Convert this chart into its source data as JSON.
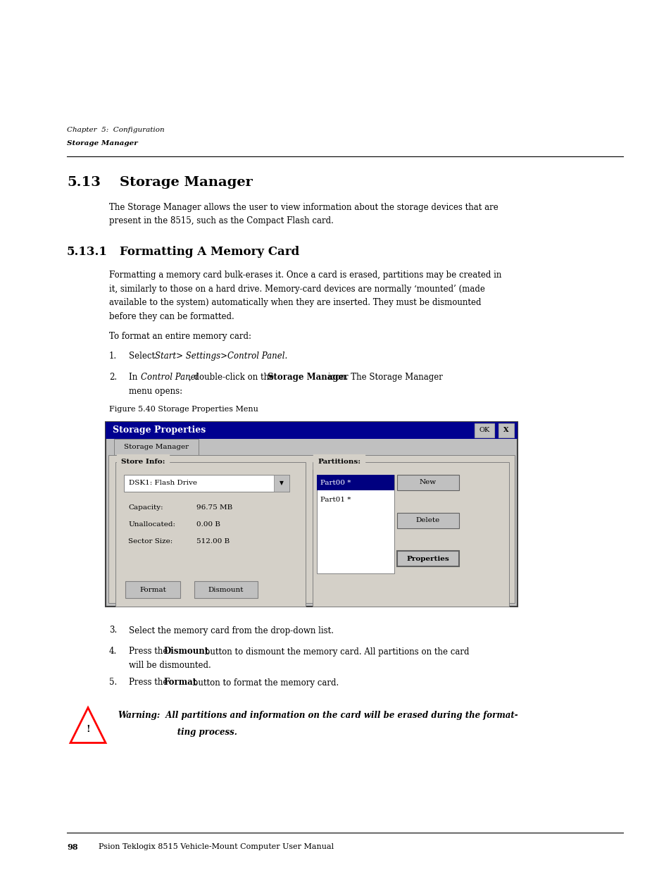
{
  "page_width": 9.54,
  "page_height": 12.35,
  "bg_color": "#ffffff",
  "top_margin_text_line1": "Chapter  5:  Configuration",
  "top_margin_text_line2": "Storage Manager",
  "section_number": "5.13",
  "section_title": "Storage Manager",
  "section_body_l1": "The Storage Manager allows the user to view information about the storage devices that are",
  "section_body_l2": "present in the 8515, such as the Compact Flash card.",
  "subsection_number": "5.13.1",
  "subsection_title": "Formatting A Memory Card",
  "sub_body_l1": "Formatting a memory card bulk-erases it. Once a card is erased, partitions may be created in",
  "sub_body_l2": "it, similarly to those on a hard drive. Memory-card devices are normally ‘mounted’ (made",
  "sub_body_l3": "available to the system) automatically when they are inserted. They must be dismounted",
  "sub_body_l4": "before they can be formatted.",
  "to_format": "To format an entire memory card:",
  "step1_a": "Select ",
  "step1_b": "Start> Settings>Control Panel.",
  "step2_a": "In ",
  "step2_b": "Control Panel",
  "step2_c": ", double-click on the ",
  "step2_d": "Storage Manager",
  "step2_e": " icon. The Storage Manager",
  "step2_f": "menu opens:",
  "figure_caption": "Figure 5.40 Storage Properties Menu",
  "step3": "Select the memory card from the drop-down list.",
  "step4_a": "Press the ",
  "step4_b": "Dismount",
  "step4_c": " button to dismount the memory card. All partitions on the card",
  "step4_d": "will be dismounted.",
  "step5_a": "Press the ",
  "step5_b": "Format",
  "step5_c": " button to format the memory card.",
  "warning_label": "Warning:",
  "warning_text_l1": "  All partitions and information on the card will be erased during the format-",
  "warning_text_l2": "      ting process.",
  "footer_page": "98",
  "footer_text": "Psion Teklogix 8515 Vehicle-Mount Computer User Manual",
  "dialog_title_text": "Storage Properties",
  "tab_text": "Storage Manager",
  "store_info_label": "Store Info:",
  "dropdown_text": "DSK1: Flash Drive",
  "capacity_label": "Capacity:",
  "capacity_value": "96.75 MB",
  "unallocated_label": "Unallocated:",
  "unallocated_value": "0.00 B",
  "sector_label": "Sector Size:",
  "sector_value": "512.00 B",
  "format_btn": "Format",
  "dismount_btn": "Dismount",
  "partitions_label": "Partitions:",
  "part00": "Part00 *",
  "part01": "Part01 *",
  "new_btn": "New",
  "delete_btn": "Delete",
  "properties_btn": "Properties"
}
